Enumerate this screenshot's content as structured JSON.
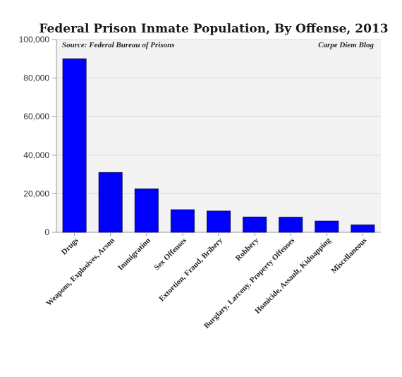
{
  "chart_data": {
    "type": "bar",
    "title": "Federal Prison Inmate Population, By Offense, 2013",
    "source_note": "Source: Federal Bureau of Prisons",
    "credit": "Carpe Diem Blog",
    "xlabel": "",
    "ylabel": "",
    "categories": [
      "Drugs",
      "Weapons, Explosives, Arson",
      "Immigration",
      "Sex Offenses",
      "Extortion, Fraud, Bribery",
      "Robbery",
      "Burglary, Larceny, Property Offenses",
      "Homicide, Assault, Kidnapping",
      "Miscellaneous"
    ],
    "values": [
      90000,
      31000,
      22500,
      11700,
      11000,
      7900,
      7800,
      5800,
      3800
    ],
    "yticks": [
      0,
      20000,
      40000,
      60000,
      80000,
      100000
    ],
    "ytick_labels": [
      "0",
      "20,000",
      "40,000",
      "60,000",
      "80,000",
      "100,000"
    ],
    "ylim": [
      0,
      100000
    ],
    "grid": true,
    "legend": "none",
    "colors": {
      "bar": "#0000ff",
      "bar_edge": "#0a0a6a",
      "plot_background": "#f3f3f3",
      "grid": "#d8d8d8",
      "axis": "#999999"
    }
  }
}
